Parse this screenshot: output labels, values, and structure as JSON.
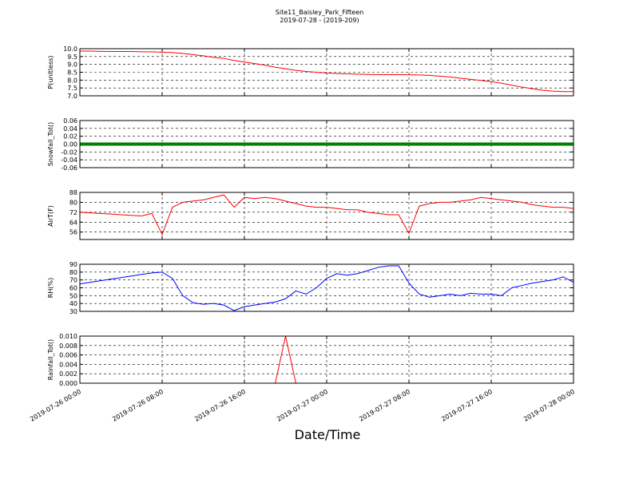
{
  "chart_data": {
    "type": "line",
    "title": "Site11_Baisley_Park_Fifteen",
    "subtitle": "2019-07-28 - (2019-209)",
    "xlabel": "Date/Time",
    "xlim": [
      "2019-07-26 00:00",
      "2019-07-28 00:00"
    ],
    "xticks": [
      "2019-07-26 00:00",
      "2019-07-26 08:00",
      "2019-07-26 16:00",
      "2019-07-27 00:00",
      "2019-07-27 08:00",
      "2019-07-27 16:00",
      "2019-07-28 00:00"
    ],
    "grid": true,
    "x": [
      "2019-07-26 00:00",
      "2019-07-26 01:00",
      "2019-07-26 02:00",
      "2019-07-26 03:00",
      "2019-07-26 04:00",
      "2019-07-26 05:00",
      "2019-07-26 06:00",
      "2019-07-26 07:00",
      "2019-07-26 08:00",
      "2019-07-26 09:00",
      "2019-07-26 10:00",
      "2019-07-26 11:00",
      "2019-07-26 12:00",
      "2019-07-26 13:00",
      "2019-07-26 14:00",
      "2019-07-26 15:00",
      "2019-07-26 16:00",
      "2019-07-26 17:00",
      "2019-07-26 18:00",
      "2019-07-26 19:00",
      "2019-07-26 20:00",
      "2019-07-26 21:00",
      "2019-07-26 22:00",
      "2019-07-26 23:00",
      "2019-07-27 00:00",
      "2019-07-27 01:00",
      "2019-07-27 02:00",
      "2019-07-27 03:00",
      "2019-07-27 04:00",
      "2019-07-27 05:00",
      "2019-07-27 06:00",
      "2019-07-27 07:00",
      "2019-07-27 08:00",
      "2019-07-27 09:00",
      "2019-07-27 10:00",
      "2019-07-27 11:00",
      "2019-07-27 12:00",
      "2019-07-27 13:00",
      "2019-07-27 14:00",
      "2019-07-27 15:00",
      "2019-07-27 16:00",
      "2019-07-27 17:00",
      "2019-07-27 18:00",
      "2019-07-27 19:00",
      "2019-07-27 20:00",
      "2019-07-27 21:00",
      "2019-07-27 22:00",
      "2019-07-27 23:00",
      "2019-07-28 00:00"
    ],
    "panels": [
      {
        "ylabel": "P(unitless)",
        "color": "#ff0000",
        "ylim": [
          7.0,
          10.0
        ],
        "yticks": [
          {
            "value": 7,
            "label": "7.0"
          },
          7.5,
          {
            "value": 8,
            "label": "8.0"
          },
          8.5,
          {
            "value": 9,
            "label": "9.0"
          },
          9.5,
          {
            "value": 10,
            "label": "10.0"
          }
        ],
        "values": [
          9.85,
          9.85,
          9.83,
          9.82,
          9.82,
          9.82,
          9.8,
          9.8,
          9.78,
          9.75,
          9.7,
          9.62,
          9.55,
          9.45,
          9.38,
          9.25,
          9.15,
          9.05,
          8.95,
          8.82,
          8.72,
          8.62,
          8.55,
          8.5,
          8.45,
          8.42,
          8.4,
          8.38,
          8.36,
          8.35,
          8.35,
          8.35,
          8.34,
          8.33,
          8.3,
          8.25,
          8.2,
          8.12,
          8.05,
          7.98,
          7.9,
          7.8,
          7.68,
          7.55,
          7.45,
          7.35,
          7.3,
          7.27,
          7.27
        ]
      },
      {
        "ylabel": "Snowfall_Tot()",
        "color": "#008000",
        "ylim": [
          -0.06,
          0.06
        ],
        "yticks": [
          -0.06,
          -0.04,
          -0.02,
          {
            "value": 0,
            "label": "0.00"
          },
          0.02,
          0.04,
          0.06
        ],
        "values": [
          0,
          0,
          0,
          0,
          0,
          0,
          0,
          0,
          0,
          0,
          0,
          0,
          0,
          0,
          0,
          0,
          0,
          0,
          0,
          0,
          0,
          0,
          0,
          0,
          0,
          0,
          0,
          0,
          0,
          0,
          0,
          0,
          0,
          0,
          0,
          0,
          0,
          0,
          0,
          0,
          0,
          0,
          0,
          0,
          0,
          0,
          0,
          0,
          0
        ]
      },
      {
        "ylabel": "AirT(F)",
        "color": "#ff0000",
        "ylim": [
          50,
          88
        ],
        "yticks": [
          56,
          64,
          72,
          80,
          88
        ],
        "values": [
          72,
          71.5,
          71,
          70.5,
          70,
          69.5,
          69,
          71,
          54,
          76,
          80,
          81,
          82,
          84,
          86,
          76,
          84,
          83,
          84,
          83,
          81,
          79,
          77,
          76,
          76,
          75,
          74,
          74,
          72,
          71,
          70,
          70,
          55,
          77,
          79,
          80,
          80,
          81,
          82,
          84,
          83,
          82,
          81,
          80,
          78,
          77,
          76,
          76,
          75
        ]
      },
      {
        "ylabel": "RH(%)",
        "color": "#0000ff",
        "ylim": [
          30,
          90
        ],
        "yticks": [
          30,
          40,
          50,
          60,
          70,
          80,
          90
        ],
        "values": [
          65,
          67,
          69,
          71,
          73,
          75,
          77,
          79,
          80,
          72,
          50,
          41,
          39,
          40,
          38,
          31,
          36,
          38,
          40,
          42,
          46,
          56,
          52,
          60,
          72,
          78,
          76,
          78,
          82,
          86,
          88,
          88,
          66,
          52,
          48,
          50,
          52,
          50,
          53,
          52,
          52,
          50,
          60,
          63,
          66,
          68,
          70,
          74,
          67
        ]
      },
      {
        "ylabel": "Rainfall_Tot()",
        "color": "#ff0000",
        "ylim": [
          0,
          0.01
        ],
        "yticks": [
          {
            "value": 0,
            "label": "0.000"
          },
          {
            "value": 0.002,
            "label": "0.002"
          },
          {
            "value": 0.004,
            "label": "0.004"
          },
          {
            "value": 0.006,
            "label": "0.006"
          },
          {
            "value": 0.008,
            "label": "0.008"
          },
          {
            "value": 0.01,
            "label": "0.010"
          }
        ],
        "values": [
          0,
          0,
          0,
          0,
          0,
          0,
          0,
          0,
          0,
          0,
          0,
          0,
          0,
          0,
          0,
          0,
          0,
          0,
          0,
          0,
          0.01,
          0,
          0,
          0,
          0,
          0,
          0,
          0,
          0,
          0,
          0,
          0,
          0,
          0,
          0,
          0,
          0,
          0,
          0,
          0,
          0,
          0,
          0,
          0,
          0,
          0,
          0,
          0,
          0
        ]
      }
    ]
  }
}
